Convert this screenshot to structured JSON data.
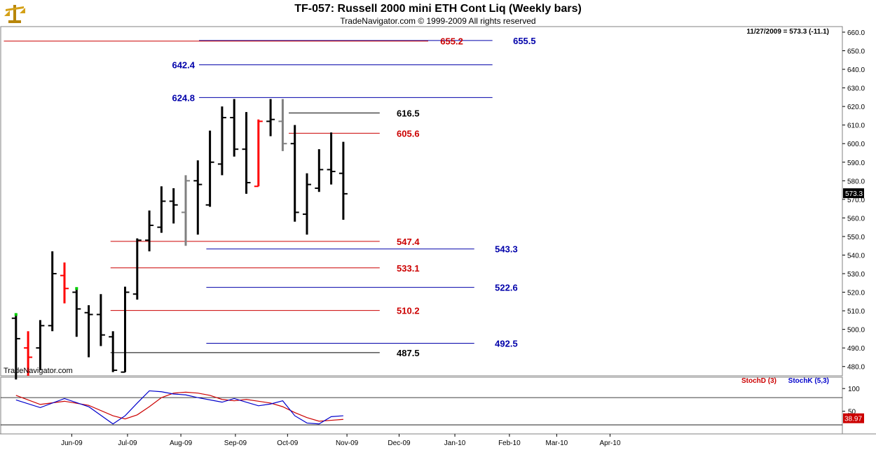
{
  "header": {
    "title": "TF-057:  Russell 2000 mini ETH Cont Liq  (Weekly bars)",
    "subtitle": "TradeNavigator.com © 1999-2009 All rights reserved",
    "date_readout": "11/27/2009 = 573.3 (-11.1)",
    "watermark": "TradeNavigator.com",
    "last_price_label": "573.3"
  },
  "colors": {
    "bar_default": "#000000",
    "bar_red": "#ff0000",
    "bar_gray": "#808080",
    "bar_green": "#00cc00",
    "blue_level": "#0000aa",
    "red_level": "#cc0000",
    "black_level": "#000000",
    "stoch_d": "#cc0000",
    "stoch_k": "#0000cc"
  },
  "chart_data": [
    {
      "type": "ohlc",
      "title": "TF-057:  Russell 2000 mini ETH Cont Liq  (Weekly bars)",
      "ylim": [
        475,
        663
      ],
      "y_ticks": [
        480,
        490,
        500,
        510,
        520,
        530,
        540,
        550,
        560,
        570,
        580,
        590,
        600,
        610,
        620,
        630,
        640,
        650,
        660
      ],
      "x_ticks": [
        "Jun-09",
        "Jul-09",
        "Aug-09",
        "Sep-09",
        "Oct-09",
        "Nov-09",
        "Dec-09",
        "Jan-10",
        "Feb-10",
        "Mar-10",
        "Apr-10"
      ],
      "x_tick_weeks": [
        5.6,
        10.2,
        14.6,
        19.1,
        23.4,
        28.3,
        32.6,
        37.2,
        41.7,
        45.6,
        50.0
      ],
      "bars": [
        {
          "week": 1,
          "o": 506,
          "h": 508,
          "l": 470,
          "c": 495,
          "color": "black"
        },
        {
          "week": 2,
          "o": 490,
          "h": 499,
          "l": 475,
          "c": 485,
          "color": "red"
        },
        {
          "week": 3,
          "o": 490,
          "h": 505,
          "l": 478,
          "c": 502,
          "color": "black"
        },
        {
          "week": 4,
          "o": 502,
          "h": 542,
          "l": 499,
          "c": 530,
          "color": "black"
        },
        {
          "week": 5,
          "o": 529,
          "h": 536,
          "l": 514,
          "c": 522,
          "color": "red"
        },
        {
          "week": 6,
          "o": 520,
          "h": 522,
          "l": 496,
          "c": 511,
          "color": "black"
        },
        {
          "week": 7,
          "o": 509,
          "h": 513,
          "l": 485,
          "c": 508,
          "color": "black"
        },
        {
          "week": 8,
          "o": 508,
          "h": 519,
          "l": 491,
          "c": 497,
          "color": "black"
        },
        {
          "week": 9,
          "o": 496,
          "h": 499,
          "l": 477,
          "c": 478,
          "color": "black"
        },
        {
          "week": 10,
          "o": 477,
          "h": 523,
          "l": 477,
          "c": 520,
          "color": "black"
        },
        {
          "week": 11,
          "o": 519,
          "h": 549,
          "l": 516,
          "c": 548,
          "color": "black"
        },
        {
          "week": 12,
          "o": 548,
          "h": 564,
          "l": 542,
          "c": 556,
          "color": "black"
        },
        {
          "week": 13,
          "o": 555,
          "h": 577,
          "l": 552,
          "c": 569,
          "color": "black"
        },
        {
          "week": 14,
          "o": 569,
          "h": 576,
          "l": 557,
          "c": 567,
          "color": "black"
        },
        {
          "week": 15,
          "o": 563,
          "h": 583,
          "l": 545,
          "c": 580,
          "color": "gray"
        },
        {
          "week": 16,
          "o": 580,
          "h": 591,
          "l": 551,
          "c": 578,
          "color": "black"
        },
        {
          "week": 17,
          "o": 567,
          "h": 607,
          "l": 566,
          "c": 590,
          "color": "black"
        },
        {
          "week": 18,
          "o": 589,
          "h": 620,
          "l": 583,
          "c": 614,
          "color": "black"
        },
        {
          "week": 19,
          "o": 614,
          "h": 624,
          "l": 593,
          "c": 597,
          "color": "black"
        },
        {
          "week": 20,
          "o": 597,
          "h": 617,
          "l": 573,
          "c": 579,
          "color": "black"
        },
        {
          "week": 21,
          "o": 577,
          "h": 613,
          "l": 577,
          "c": 612,
          "color": "red"
        },
        {
          "week": 22,
          "o": 612,
          "h": 624,
          "l": 604,
          "c": 613,
          "color": "black"
        },
        {
          "week": 23,
          "o": 612,
          "h": 624,
          "l": 596,
          "c": 600,
          "color": "gray"
        },
        {
          "week": 24,
          "o": 600,
          "h": 610,
          "l": 558,
          "c": 563,
          "color": "black"
        },
        {
          "week": 25,
          "o": 562,
          "h": 584,
          "l": 551,
          "c": 578,
          "color": "black"
        },
        {
          "week": 26,
          "o": 576,
          "h": 597,
          "l": 574,
          "c": 586,
          "color": "black"
        },
        {
          "week": 27,
          "o": 586,
          "h": 606,
          "l": 578,
          "c": 585,
          "color": "black"
        },
        {
          "week": 28,
          "o": 584,
          "h": 601,
          "l": 559,
          "c": 573,
          "color": "black"
        }
      ],
      "levels": [
        {
          "value": 655.5,
          "label": "655.5",
          "color": "blue",
          "week_start": 16.1,
          "week_end": 40.3,
          "label_week": 42.0
        },
        {
          "value": 655.2,
          "label": "655.2",
          "color": "red",
          "week_start": 0,
          "week_end": 35.0,
          "label_week": 36.0
        },
        {
          "value": 642.4,
          "label": "642.4",
          "color": "blue",
          "week_start": 16.1,
          "week_end": 40.3,
          "label_week": 14.0
        },
        {
          "value": 624.8,
          "label": "624.8",
          "color": "blue",
          "week_start": 16.1,
          "week_end": 40.3,
          "label_week": 14.0
        },
        {
          "value": 616.5,
          "label": "616.5",
          "color": "black",
          "week_start": 23.5,
          "week_end": 31.0,
          "label_week": 32.4
        },
        {
          "value": 605.6,
          "label": "605.6",
          "color": "red",
          "week_start": 23.5,
          "week_end": 31.0,
          "label_week": 32.4
        },
        {
          "value": 547.4,
          "label": "547.4",
          "color": "red",
          "week_start": 8.8,
          "week_end": 31.0,
          "label_week": 32.4
        },
        {
          "value": 543.3,
          "label": "543.3",
          "color": "blue",
          "week_start": 16.7,
          "week_end": 38.8,
          "label_week": 40.5
        },
        {
          "value": 533.1,
          "label": "533.1",
          "color": "red",
          "week_start": 8.8,
          "week_end": 31.0,
          "label_week": 32.4
        },
        {
          "value": 522.6,
          "label": "522.6",
          "color": "blue",
          "week_start": 16.7,
          "week_end": 38.8,
          "label_week": 40.5
        },
        {
          "value": 510.2,
          "label": "510.2",
          "color": "red",
          "week_start": 8.8,
          "week_end": 31.0,
          "label_week": 32.4
        },
        {
          "value": 492.5,
          "label": "492.5",
          "color": "blue",
          "week_start": 16.7,
          "week_end": 38.8,
          "label_week": 40.5
        },
        {
          "value": 487.5,
          "label": "487.5",
          "color": "black",
          "week_start": 8.8,
          "week_end": 31.0,
          "label_week": 32.4
        }
      ]
    },
    {
      "type": "line",
      "title": "",
      "ylim": [
        0,
        125
      ],
      "y_ticks": [
        100,
        50
      ],
      "reference_lines": [
        80,
        20
      ],
      "series": [
        {
          "name": "StochD (3)",
          "color": "red",
          "x": [
            1,
            3,
            5,
            7,
            9,
            10,
            11,
            12,
            13,
            14,
            15,
            16,
            17,
            18,
            19,
            20,
            21,
            22,
            23,
            24,
            25,
            26,
            27,
            28
          ],
          "values": [
            85,
            65,
            72,
            63,
            40,
            33,
            42,
            60,
            80,
            90,
            92,
            90,
            85,
            76,
            73,
            76,
            72,
            68,
            60,
            47,
            36,
            28,
            30,
            32
          ]
        },
        {
          "name": "StochK (5,3)",
          "color": "blue",
          "x": [
            1,
            3,
            5,
            7,
            9,
            10,
            11,
            12,
            13,
            14,
            15,
            16,
            17,
            18,
            19,
            20,
            21,
            22,
            23,
            24,
            25,
            26,
            27,
            28
          ],
          "values": [
            75,
            58,
            78,
            60,
            22,
            40,
            68,
            95,
            93,
            88,
            86,
            80,
            75,
            70,
            78,
            70,
            62,
            66,
            73,
            40,
            24,
            22,
            38,
            40
          ]
        }
      ],
      "last_value_label": "38.97"
    }
  ]
}
